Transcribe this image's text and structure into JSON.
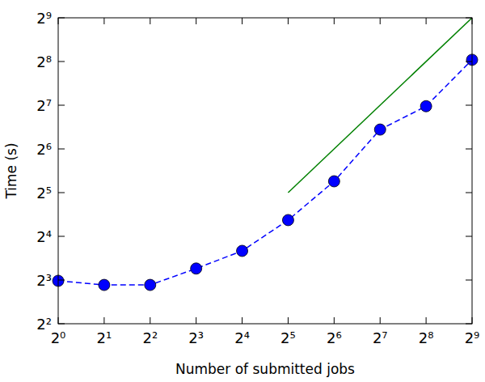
{
  "chart_data": {
    "type": "line",
    "log": true,
    "grid": false,
    "x_label": "Number of submitted jobs",
    "y_label": "Time (s)",
    "xlim": [
      1,
      512
    ],
    "ylim": [
      4,
      512
    ],
    "xticks": [
      {
        "value": 1,
        "label": "2⁰"
      },
      {
        "value": 2,
        "label": "2¹"
      },
      {
        "value": 4,
        "label": "2²"
      },
      {
        "value": 8,
        "label": "2³"
      },
      {
        "value": 16,
        "label": "2⁴"
      },
      {
        "value": 32,
        "label": "2⁵"
      },
      {
        "value": 64,
        "label": "2⁶"
      },
      {
        "value": 128,
        "label": "2⁷"
      },
      {
        "value": 256,
        "label": "2⁸"
      },
      {
        "value": 512,
        "label": "2⁹"
      }
    ],
    "yticks": [
      {
        "value": 4,
        "label": "2²"
      },
      {
        "value": 8,
        "label": "2³"
      },
      {
        "value": 16,
        "label": "2⁴"
      },
      {
        "value": 32,
        "label": "2⁵"
      },
      {
        "value": 64,
        "label": "2⁶"
      },
      {
        "value": 128,
        "label": "2⁷"
      },
      {
        "value": 256,
        "label": "2⁸"
      },
      {
        "value": 512,
        "label": "2⁹"
      }
    ],
    "series": [
      {
        "color": "#0000ff",
        "marker": "circle",
        "line_style": "dashed",
        "x": [
          1,
          2,
          4,
          8,
          16,
          32,
          64,
          128,
          256,
          512
        ],
        "values": [
          7.9,
          7.4,
          7.4,
          9.6,
          12.7,
          20.7,
          38.3,
          87,
          126,
          263
        ]
      },
      {
        "color": "#008000",
        "marker": "none",
        "line_style": "solid",
        "x": [
          32,
          512
        ],
        "values": [
          32,
          512
        ]
      }
    ]
  }
}
